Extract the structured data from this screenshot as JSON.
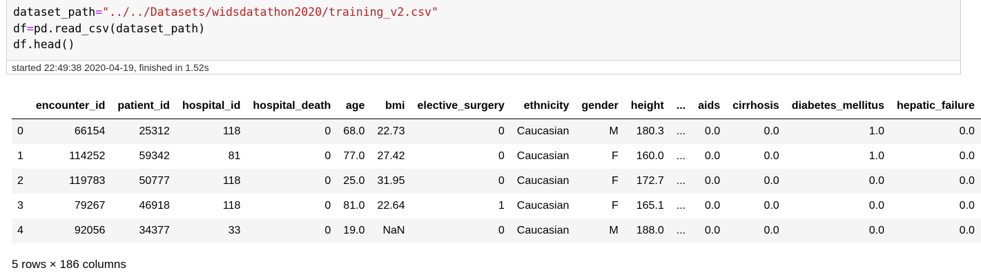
{
  "notebook": {
    "code_lines": [
      {
        "prefix": "dataset_path",
        "op": "=",
        "value": "\"../../Datasets/widsdatathon2020/training_v2.csv\""
      },
      {
        "prefix": "df",
        "op": "=",
        "value": "pd.read_csv(dataset_path)"
      },
      {
        "prefix": "df.head()",
        "op": "",
        "value": ""
      }
    ],
    "exec_info": "started 22:49:38 2020-04-19, finished in 1.52s"
  },
  "dataframe": {
    "columns": [
      "",
      "encounter_id",
      "patient_id",
      "hospital_id",
      "hospital_death",
      "age",
      "bmi",
      "elective_surgery",
      "ethnicity",
      "gender",
      "height",
      "...",
      "aids",
      "cirrhosis",
      "diabetes_mellitus",
      "hepatic_failure"
    ],
    "rows": [
      [
        "0",
        "66154",
        "25312",
        "118",
        "0",
        "68.0",
        "22.73",
        "0",
        "Caucasian",
        "M",
        "180.3",
        "...",
        "0.0",
        "0.0",
        "1.0",
        "0.0"
      ],
      [
        "1",
        "114252",
        "59342",
        "81",
        "0",
        "77.0",
        "27.42",
        "0",
        "Caucasian",
        "F",
        "160.0",
        "...",
        "0.0",
        "0.0",
        "1.0",
        "0.0"
      ],
      [
        "2",
        "119783",
        "50777",
        "118",
        "0",
        "25.0",
        "31.95",
        "0",
        "Caucasian",
        "F",
        "172.7",
        "...",
        "0.0",
        "0.0",
        "0.0",
        "0.0"
      ],
      [
        "3",
        "79267",
        "46918",
        "118",
        "0",
        "81.0",
        "22.64",
        "1",
        "Caucasian",
        "F",
        "165.1",
        "...",
        "0.0",
        "0.0",
        "0.0",
        "0.0"
      ],
      [
        "4",
        "92056",
        "34377",
        "33",
        "0",
        "19.0",
        "NaN",
        "0",
        "Caucasian",
        "M",
        "188.0",
        "...",
        "0.0",
        "0.0",
        "0.0",
        "0.0"
      ]
    ],
    "summary": "5 rows × 186 columns"
  }
}
